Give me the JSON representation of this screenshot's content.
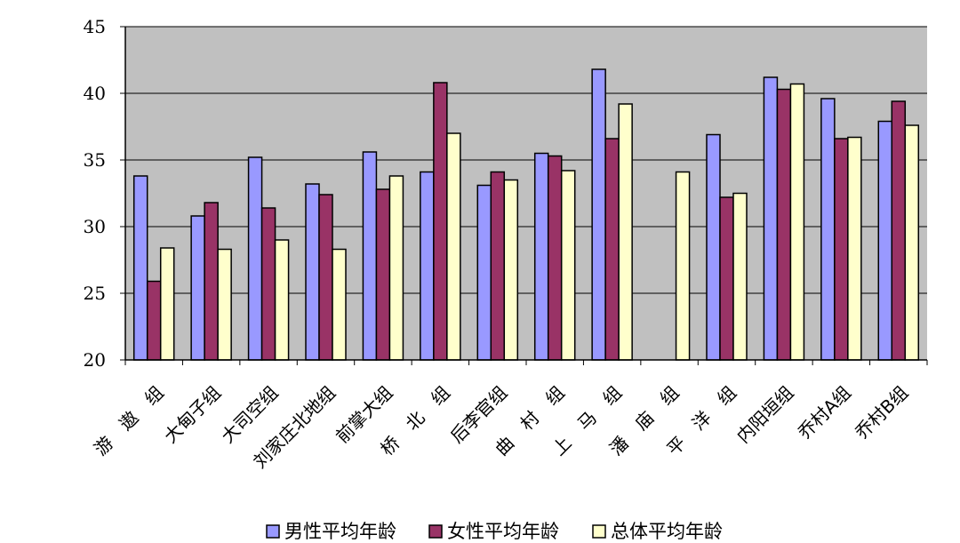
{
  "chart_data": {
    "type": "bar",
    "categories": [
      "游　遨　组",
      "大甸子组",
      "大司空组",
      "刘家庄北地组",
      "前掌大组",
      "桥　北　组",
      "后李官组",
      "曲　村　组",
      "上　马　组",
      "潘　庙　组",
      "平　洋　组",
      "内阳垣组",
      "乔村A组",
      "乔村B组"
    ],
    "series": [
      {
        "name": "男性平均年龄",
        "values": [
          33.8,
          30.8,
          35.2,
          33.2,
          35.6,
          34.1,
          33.1,
          35.5,
          41.8,
          null,
          36.9,
          41.2,
          39.6,
          37.9
        ]
      },
      {
        "name": "女性平均年龄",
        "values": [
          25.9,
          31.8,
          31.4,
          32.4,
          32.8,
          40.8,
          34.1,
          35.3,
          36.6,
          null,
          32.2,
          40.3,
          36.6,
          39.4
        ]
      },
      {
        "name": "总体平均年龄",
        "values": [
          28.4,
          28.3,
          29.0,
          28.3,
          33.8,
          37.0,
          33.5,
          34.2,
          39.2,
          34.1,
          32.5,
          40.7,
          36.7,
          37.6
        ]
      }
    ],
    "ylim": [
      20,
      45
    ],
    "yticks": [
      20,
      25,
      30,
      35,
      40,
      45
    ],
    "colors": [
      "#9999ff",
      "#993366",
      "#ffffcc"
    ],
    "plot_bg": "#c0c0c0",
    "grid": true,
    "legend_position": "bottom"
  }
}
